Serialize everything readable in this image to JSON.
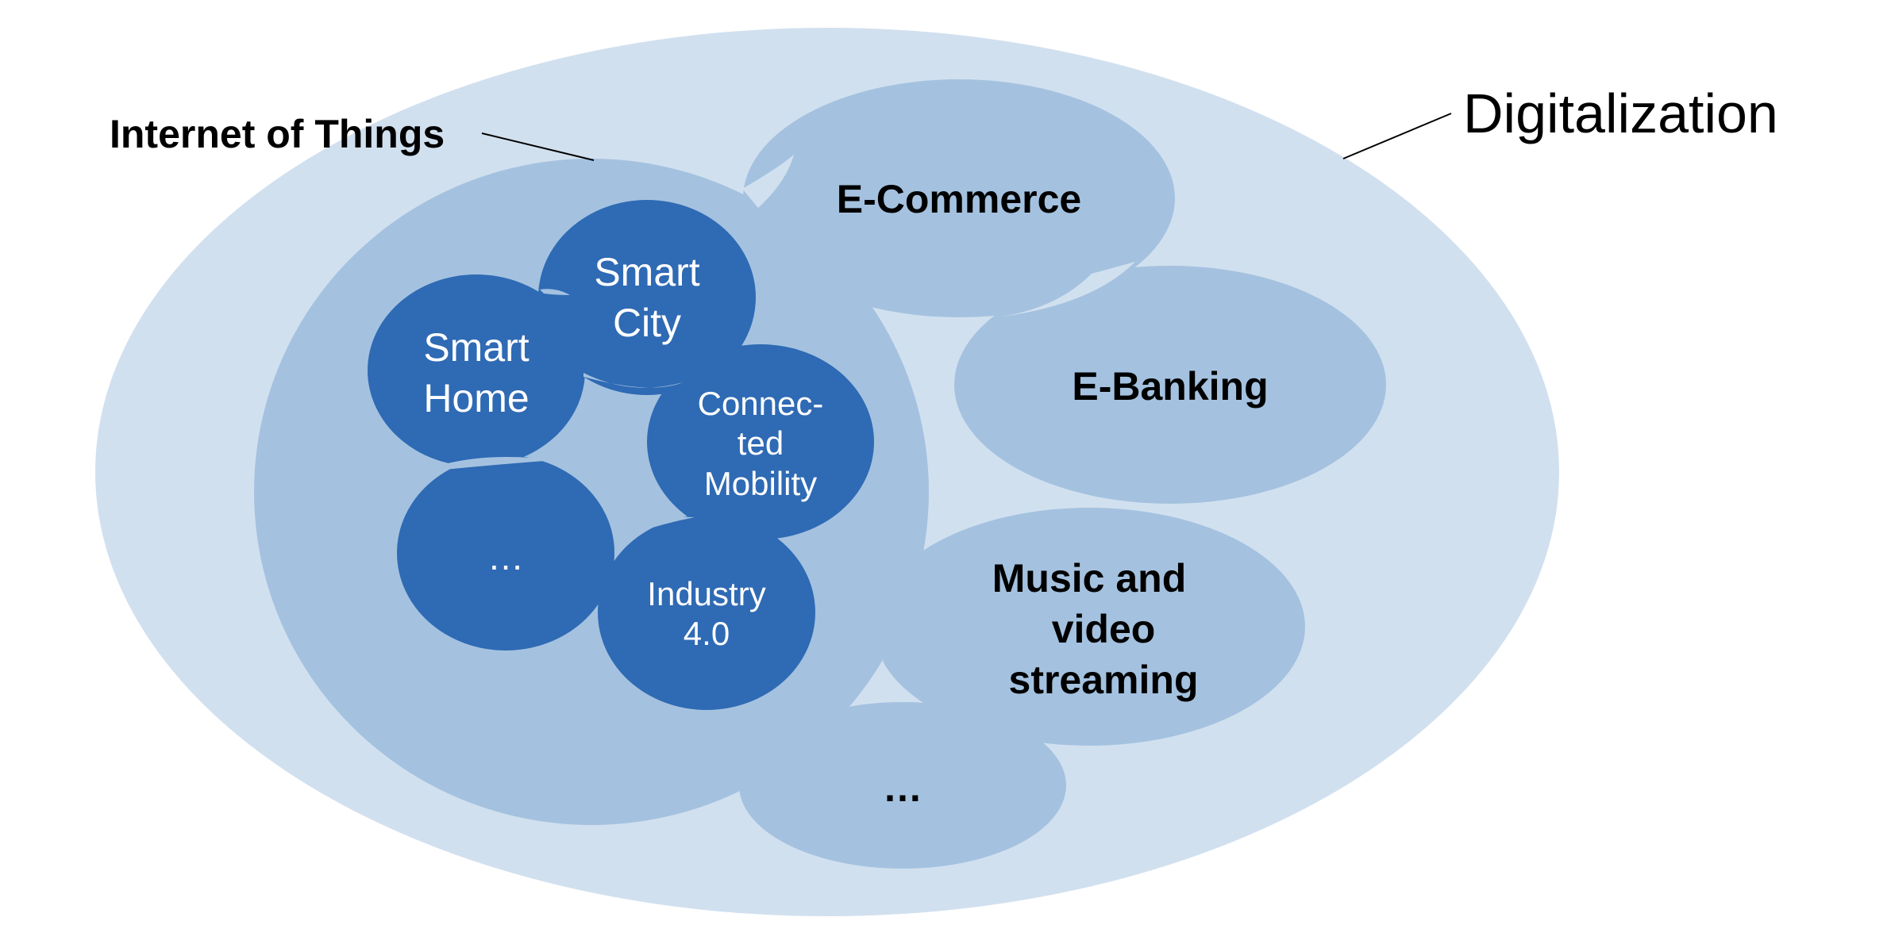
{
  "colors": {
    "outer": "#d1e0ef",
    "mid": "#a4c2df",
    "inner": "#2f6ab4",
    "text_dark": "#000000",
    "text_light": "#ffffff",
    "leader_line": "#000000"
  },
  "labels": {
    "digitalization": "Digitalization",
    "internet_of_things": "Internet of Things"
  },
  "mid_items": {
    "ecommerce": "E-Commerce",
    "ebanking": "E-Banking",
    "music_line1": "Music and",
    "music_line2": "video",
    "music_line3": "streaming",
    "more": "…"
  },
  "iot_items": {
    "smart_city_line1": "Smart",
    "smart_city_line2": "City",
    "smart_home_line1": "Smart",
    "smart_home_line2": "Home",
    "connected_line1": "Connec-",
    "connected_line2": "ted",
    "connected_line3": "Mobility",
    "industry_line1": "Industry",
    "industry_line2": "4.0",
    "more": "…"
  }
}
